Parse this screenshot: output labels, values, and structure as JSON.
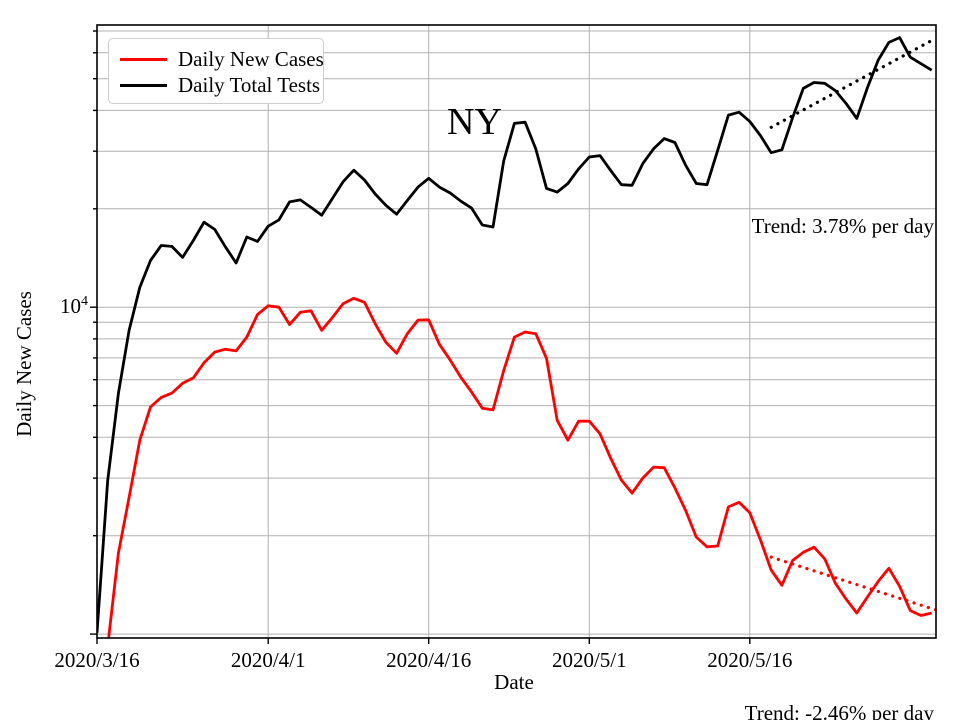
{
  "chart_data": {
    "type": "line",
    "title": "NY",
    "xlabel": "Date",
    "ylabel": "Daily New Cases",
    "y_scale": "log",
    "y_range": [
      973,
      73000
    ],
    "y_tick_label": {
      "base": "10",
      "exponent": "4"
    },
    "grid": true,
    "grid_color": "#b1b1b1",
    "frame_color": "#000000",
    "legend_position": "upper left",
    "x_start_date": "2020/3/16",
    "x_tick_labels": [
      "2020/3/16",
      "2020/4/1",
      "2020/4/16",
      "2020/5/1",
      "2020/5/16"
    ],
    "x_tick_days": [
      0,
      16,
      31,
      46,
      61
    ],
    "x_range_days": [
      0,
      78.4
    ],
    "grid_values": [
      1000,
      2000,
      3000,
      4000,
      5000,
      6000,
      7000,
      8000,
      9000,
      10000,
      20000,
      30000,
      40000,
      50000,
      60000,
      70000
    ],
    "series": [
      {
        "name": "Daily New Cases",
        "color": "#ff0000",
        "start_date": "2020/3/16",
        "cadence": "daily",
        "values": [
          750,
          920,
          1770,
          2620,
          3920,
          4950,
          5300,
          5460,
          5850,
          6080,
          6760,
          7290,
          7440,
          7350,
          8100,
          9500,
          10100,
          10000,
          8850,
          9650,
          9750,
          8500,
          9300,
          10250,
          10650,
          10350,
          8900,
          7810,
          7230,
          8300,
          9130,
          9150,
          7700,
          6890,
          6100,
          5500,
          4910,
          4850,
          6400,
          8100,
          8400,
          8300,
          6980,
          4510,
          3920,
          4480,
          4480,
          4100,
          3450,
          2960,
          2700,
          3000,
          3240,
          3230,
          2800,
          2390,
          1980,
          1850,
          1860,
          2450,
          2530,
          2350,
          1940,
          1570,
          1410,
          1680,
          1780,
          1845,
          1700,
          1430,
          1280,
          1160,
          1300,
          1450,
          1590,
          1400,
          1180,
          1140,
          1160
        ]
      },
      {
        "name": "Daily Total Tests",
        "color": "#000000",
        "start_date": "2020/3/16",
        "cadence": "daily",
        "values": [
          1010,
          2950,
          5450,
          8500,
          11500,
          13900,
          15450,
          15350,
          14200,
          16000,
          18200,
          17300,
          15300,
          13650,
          16400,
          15900,
          17700,
          18500,
          21000,
          21300,
          20200,
          19100,
          21500,
          24200,
          26250,
          24500,
          22200,
          20500,
          19250,
          21200,
          23300,
          24800,
          23300,
          22350,
          21100,
          20100,
          17850,
          17600,
          28000,
          36500,
          36800,
          30500,
          23100,
          22500,
          23900,
          26500,
          28800,
          29100,
          26200,
          23700,
          23600,
          27500,
          30500,
          32800,
          31900,
          27200,
          23900,
          23700,
          30200,
          38700,
          39500,
          37000,
          33500,
          29700,
          30300,
          38000,
          46700,
          48700,
          48400,
          46000,
          42000,
          37800,
          47000,
          57000,
          64600,
          66800,
          58200,
          55600,
          53100
        ]
      }
    ],
    "trend_lines": [
      {
        "series": "Daily Total Tests",
        "label": "Trend: 3.78% per day",
        "color": "#000000",
        "day_start": 63,
        "value_start": 35500,
        "day_end": 78.4,
        "value_end": 66500
      },
      {
        "series": "Daily New Cases",
        "label": "Trend: -2.46% per day",
        "color": "#ff0000",
        "day_start": 63,
        "value_start": 1720,
        "day_end": 78.4,
        "value_end": 1185
      }
    ]
  }
}
